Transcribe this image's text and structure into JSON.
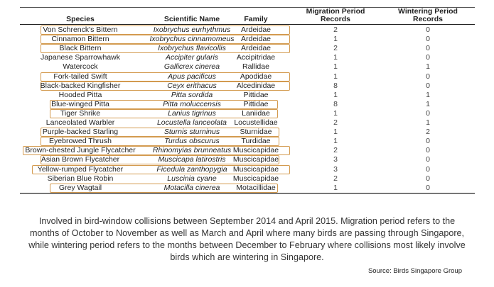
{
  "table": {
    "headers": {
      "species": "Species",
      "scientific": "Scientific Name",
      "family": "Family",
      "migration": "Migration Period Records",
      "wintering": "Wintering Period Records"
    },
    "highlight_color": "#d39a4f",
    "rows": [
      {
        "species": "Von Schrenck's Bittern",
        "scientific": "Ixobrychus eurhythmus",
        "family": "Ardeidae",
        "migration": "2",
        "wintering": "0",
        "highlighted": true
      },
      {
        "species": "Cinnamon Bittern",
        "scientific": "Ixobrychus cinnamomeus",
        "family": "Ardeidae",
        "migration": "1",
        "wintering": "0",
        "highlighted": true
      },
      {
        "species": "Black Bittern",
        "scientific": "Ixobrychus flavicollis",
        "family": "Ardeidae",
        "migration": "2",
        "wintering": "0",
        "highlighted": true
      },
      {
        "species": "Japanese Sparrowhawk",
        "scientific": "Accipiter gularis",
        "family": "Accipitridae",
        "migration": "1",
        "wintering": "0",
        "highlighted": false
      },
      {
        "species": "Watercock",
        "scientific": "Gallicrex cinerea",
        "family": "Rallidae",
        "migration": "1",
        "wintering": "1",
        "highlighted": false
      },
      {
        "species": "Fork-tailed Swift",
        "scientific": "Apus pacificus",
        "family": "Apodidae",
        "migration": "1",
        "wintering": "0",
        "highlighted": true
      },
      {
        "species": "Black-backed Kingfisher",
        "scientific": "Ceyx erithacus",
        "family": "Alcedinidae",
        "migration": "8",
        "wintering": "0",
        "highlighted": true
      },
      {
        "species": "Hooded Pitta",
        "scientific": "Pitta sordida",
        "family": "Pittidae",
        "migration": "1",
        "wintering": "1",
        "highlighted": false
      },
      {
        "species": "Blue-winged Pitta",
        "scientific": "Pitta moluccensis",
        "family": "Pittidae",
        "migration": "8",
        "wintering": "1",
        "highlighted": true
      },
      {
        "species": "Tiger Shrike",
        "scientific": "Lanius tigrinus",
        "family": "Laniidae",
        "migration": "1",
        "wintering": "0",
        "highlighted": true
      },
      {
        "species": "Lanceolated Warbler",
        "scientific": "Locustella lanceolata",
        "family": "Locustellidae",
        "migration": "2",
        "wintering": "1",
        "highlighted": false
      },
      {
        "species": "Purple-backed Starling",
        "scientific": "Sturnis sturninus",
        "family": "Sturnidae",
        "migration": "1",
        "wintering": "2",
        "highlighted": true
      },
      {
        "species": "Eyebrowed Thrush",
        "scientific": "Turdus obscurus",
        "family": "Turdidae",
        "migration": "1",
        "wintering": "0",
        "highlighted": true
      },
      {
        "species": "Brown-chested Jungle Flycatcher",
        "scientific": "Rhinomyias brunneatus",
        "family": "Muscicapidae",
        "migration": "2",
        "wintering": "0",
        "highlighted": true
      },
      {
        "species": "Asian Brown Flycatcher",
        "scientific": "Muscicapa latirostris",
        "family": "Muscicapidae",
        "migration": "3",
        "wintering": "0",
        "highlighted": true
      },
      {
        "species": "Yellow-rumped Flycatcher",
        "scientific": "Ficedula zanthopygia",
        "family": "Muscicapidae",
        "migration": "3",
        "wintering": "0",
        "highlighted": true
      },
      {
        "species": "Siberian Blue Robin",
        "scientific": "Luscinia cyane",
        "family": "Muscicapidae",
        "migration": "2",
        "wintering": "0",
        "highlighted": false
      },
      {
        "species": "Grey Wagtail",
        "scientific": "Motacilla cinerea",
        "family": "Motacillidae",
        "migration": "1",
        "wintering": "0",
        "highlighted": true
      }
    ]
  },
  "caption": "Involved in bird-window collisions between September 2014 and April 2015. Migration period refers to the months of October to November as well as March and April where many birds are passing through Singapore, while wintering period refers to the months between December to February where collisions most likely involve birds which are wintering in Singapore.",
  "source": "Source: Birds Singapore Group"
}
